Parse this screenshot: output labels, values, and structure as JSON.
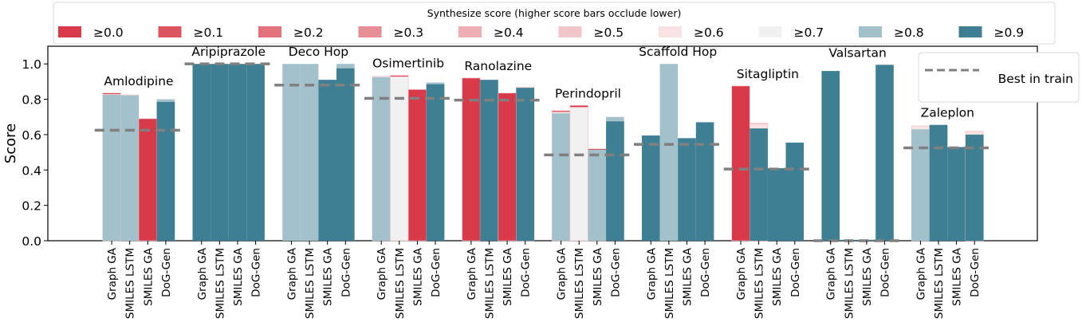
{
  "chart_data": {
    "type": "bar",
    "title": "",
    "xlabel": "",
    "ylabel": "Score",
    "ylim": [
      0,
      1.1
    ],
    "yticks": [
      "0.0",
      "0.2",
      "0.4",
      "0.6",
      "0.8",
      "1.0"
    ],
    "grid": false,
    "methods": [
      "Graph GA",
      "SMILES LSTM",
      "SMILES GA",
      "DoG-Gen"
    ],
    "legend": {
      "title": "Synthesize score (higher score bars occlude lower)",
      "placement": "top",
      "entries": [
        {
          "label": "≥0.0",
          "color": "#d93a49"
        },
        {
          "label": "≥0.1",
          "color": "#dd5461"
        },
        {
          "label": "≥0.2",
          "color": "#e2717b"
        },
        {
          "label": "≥0.3",
          "color": "#e88f96"
        },
        {
          "label": "≥0.4",
          "color": "#eeaeb3"
        },
        {
          "label": "≥0.5",
          "color": "#f3c6cc"
        },
        {
          "label": "≥0.6",
          "color": "#f8e2e4"
        },
        {
          "label": "≥0.7",
          "color": "#f1f1f1"
        },
        {
          "label": "≥0.8",
          "color": "#a3c1cb"
        },
        {
          "label": "≥0.9",
          "color": "#3f7f93"
        }
      ]
    },
    "best_legend": {
      "label": "Best in train",
      "placement": "top-right",
      "color": "#808080"
    },
    "groups": [
      {
        "name": "Amlodipine",
        "best": 0.625,
        "bars": [
          [
            [
              0,
              0.835
            ],
            [
              6,
              0.828
            ],
            [
              8,
              0.825
            ]
          ],
          [
            [
              6,
              0.825
            ],
            [
              8,
              0.822
            ]
          ],
          [
            [
              0,
              0.69
            ]
          ],
          [
            [
              8,
              0.8
            ],
            [
              9,
              0.785
            ]
          ]
        ]
      },
      {
        "name": "Aripiprazole",
        "best": 1.0,
        "bars": [
          [
            [
              9,
              1.0
            ]
          ],
          [
            [
              9,
              1.0
            ]
          ],
          [
            [
              9,
              1.0
            ]
          ],
          [
            [
              9,
              1.0
            ]
          ]
        ]
      },
      {
        "name": "Deco Hop",
        "best": 0.88,
        "bars": [
          [
            [
              8,
              1.0
            ]
          ],
          [
            [
              8,
              1.0
            ]
          ],
          [
            [
              9,
              0.91
            ]
          ],
          [
            [
              8,
              1.0
            ],
            [
              9,
              0.975
            ]
          ]
        ]
      },
      {
        "name": "Osimertinib",
        "best": 0.805,
        "bars": [
          [
            [
              6,
              0.93
            ],
            [
              8,
              0.925
            ]
          ],
          [
            [
              0,
              0.935
            ],
            [
              7,
              0.928
            ]
          ],
          [
            [
              0,
              0.855
            ]
          ],
          [
            [
              8,
              0.895
            ],
            [
              9,
              0.885
            ]
          ]
        ]
      },
      {
        "name": "Ranolazine",
        "best": 0.795,
        "bars": [
          [
            [
              0,
              0.92
            ]
          ],
          [
            [
              9,
              0.91
            ]
          ],
          [
            [
              0,
              0.835
            ]
          ],
          [
            [
              6,
              0.87
            ],
            [
              9,
              0.865
            ]
          ]
        ]
      },
      {
        "name": "Perindopril",
        "best": 0.485,
        "bars": [
          [
            [
              0,
              0.735
            ],
            [
              6,
              0.728
            ],
            [
              8,
              0.72
            ]
          ],
          [
            [
              0,
              0.765
            ],
            [
              7,
              0.755
            ]
          ],
          [
            [
              0,
              0.52
            ],
            [
              8,
              0.515
            ]
          ],
          [
            [
              8,
              0.7
            ],
            [
              9,
              0.675
            ]
          ]
        ]
      },
      {
        "name": "Scaffold Hop",
        "best": 0.545,
        "bars": [
          [
            [
              9,
              0.595
            ]
          ],
          [
            [
              8,
              1.0
            ]
          ],
          [
            [
              9,
              0.58
            ]
          ],
          [
            [
              9,
              0.67
            ]
          ]
        ]
      },
      {
        "name": "Sitagliptin",
        "best": 0.405,
        "bars": [
          [
            [
              0,
              0.875
            ]
          ],
          [
            [
              5,
              0.665
            ],
            [
              6,
              0.66
            ],
            [
              9,
              0.635
            ]
          ],
          [
            [
              9,
              0.41
            ]
          ],
          [
            [
              9,
              0.555
            ]
          ]
        ]
      },
      {
        "name": "Valsartan",
        "best": 0.0,
        "bars": [
          [
            [
              9,
              0.96
            ]
          ],
          [
            [
              9,
              0.005
            ]
          ],
          [
            [
              9,
              0.005
            ]
          ],
          [
            [
              9,
              0.995
            ]
          ]
        ]
      },
      {
        "name": "Zaleplon",
        "best": 0.525,
        "bars": [
          [
            [
              6,
              0.65
            ],
            [
              8,
              0.63
            ]
          ],
          [
            [
              9,
              0.655
            ]
          ],
          [
            [
              9,
              0.53
            ]
          ],
          [
            [
              6,
              0.62
            ],
            [
              9,
              0.6
            ]
          ]
        ]
      }
    ]
  }
}
